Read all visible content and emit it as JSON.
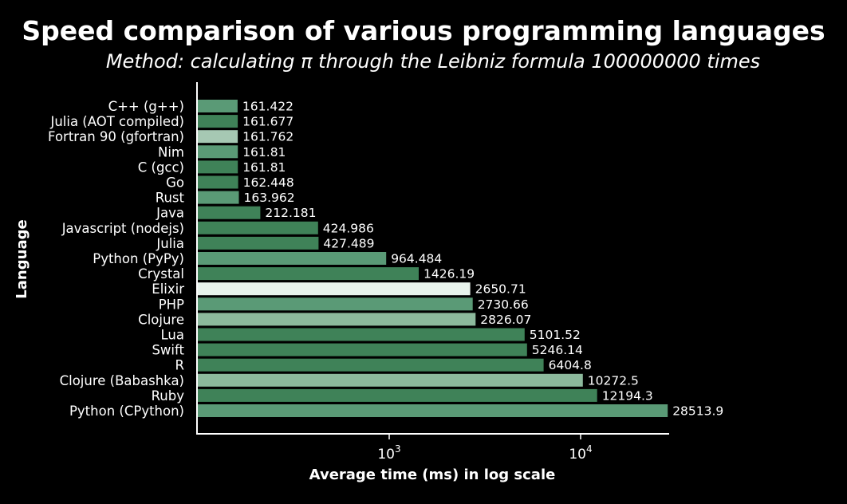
{
  "chart_data": {
    "type": "bar",
    "orientation": "horizontal",
    "title": "Speed comparison of various programming languages",
    "subtitle": "Method: calculating π through the Leibniz formula 100000000 times",
    "xlabel": "Average time (ms) in log scale",
    "ylabel": "Language",
    "xscale": "log",
    "xlim": [
      100,
      34000
    ],
    "xticks": [
      {
        "value": 1000,
        "base": "10",
        "exp": "3"
      },
      {
        "value": 10000,
        "base": "10",
        "exp": "4"
      }
    ],
    "grid": false,
    "categories": [
      "C++ (g++)",
      "Julia (AOT compiled)",
      "Fortran 90 (gfortran)",
      "Nim",
      "C (gcc)",
      "Go",
      "Rust",
      "Java",
      "Javascript (nodejs)",
      "Julia",
      "Python (PyPy)",
      "Crystal",
      "Elixir",
      "PHP",
      "Clojure",
      "Lua",
      "Swift",
      "R",
      "Clojure (Babashka)",
      "Ruby",
      "Python (CPython)"
    ],
    "values": [
      161.422,
      161.677,
      161.762,
      161.81,
      161.81,
      162.448,
      163.962,
      212.181,
      424.986,
      427.489,
      964.484,
      1426.19,
      2650.71,
      2730.66,
      2826.07,
      5101.52,
      5246.14,
      6404.8,
      10272.5,
      12194.3,
      28513.9
    ],
    "value_labels": [
      "161.422",
      "161.677",
      "161.762",
      "161.81",
      "161.81",
      "162.448",
      "163.962",
      "212.181",
      "424.986",
      "427.489",
      "964.484",
      "1426.19",
      "2650.71",
      "2730.66",
      "2826.07",
      "5101.52",
      "5246.14",
      "6404.8",
      "10272.5",
      "12194.3",
      "28513.9"
    ],
    "colors": [
      "#5a9a76",
      "#3f8258",
      "#a6c8b3",
      "#5a9a76",
      "#3f8258",
      "#3f8258",
      "#5a9a76",
      "#3f8258",
      "#3f8258",
      "#3f8258",
      "#5a9a76",
      "#3f8258",
      "#e8f3ec",
      "#5a9a76",
      "#8cb99c",
      "#3f8258",
      "#3f8258",
      "#3f8258",
      "#8cb99c",
      "#3f8258",
      "#5a9a76"
    ],
    "background": "#000000",
    "text_color": "#ffffff"
  }
}
